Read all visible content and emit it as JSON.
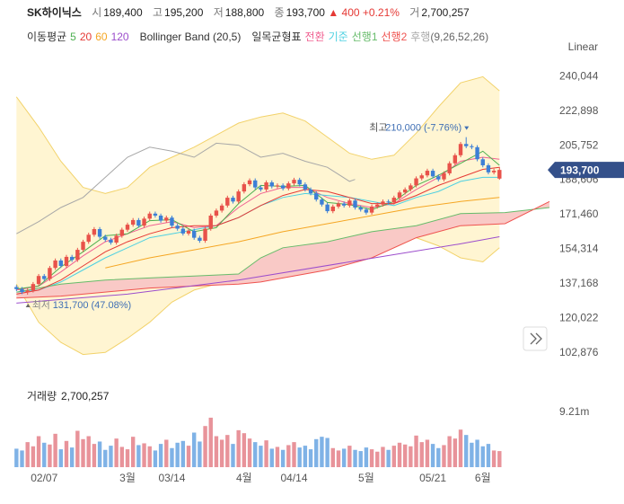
{
  "header": {
    "name": "SK하이닉스",
    "fields": [
      {
        "label": "시",
        "value": "189,400"
      },
      {
        "label": "고",
        "value": "195,200"
      },
      {
        "label": "저",
        "value": "188,800"
      },
      {
        "label": "종",
        "value": "193,700"
      }
    ],
    "change": "▲ 400",
    "change_pct": "+0.21%",
    "volume_label": "거",
    "volume": "2,700,257"
  },
  "chart_data": [
    {
      "type": "candlestick",
      "scale": "Linear",
      "xlim": [
        -0.7,
        97.3
      ],
      "ylim": [
        96000,
        246000
      ],
      "xticks": [
        {
          "value": 5,
          "label": "02/07"
        },
        {
          "value": 20,
          "label": "3월"
        },
        {
          "value": 28,
          "label": "03/14"
        },
        {
          "value": 41,
          "label": "4월"
        },
        {
          "value": 50,
          "label": "04/14"
        },
        {
          "value": 63,
          "label": "5월"
        },
        {
          "value": 75,
          "label": "05/21"
        },
        {
          "value": 84,
          "label": "6월"
        }
      ],
      "yticks": [
        {
          "value": 240044,
          "label": "240,044"
        },
        {
          "value": 222898,
          "label": "222,898"
        },
        {
          "value": 205752,
          "label": "205,752"
        },
        {
          "value": 188606,
          "label": "188,606"
        },
        {
          "value": 171460,
          "label": "171,460"
        },
        {
          "value": 154314,
          "label": "154,314"
        },
        {
          "value": 137168,
          "label": "137,168"
        },
        {
          "value": 120022,
          "label": "120,022"
        },
        {
          "value": 102876,
          "label": "102,876"
        }
      ],
      "up_color": "#e8524a",
      "down_color": "#3d7fd6",
      "last_price": {
        "value": 193700,
        "label": "193,700"
      },
      "high_note": {
        "label": "최고",
        "text": "210,000 (-7.76%)"
      },
      "low_note": {
        "label": "최저",
        "text": "131,700 (47.08%)"
      },
      "open": [
        135500,
        134500,
        133000,
        133800,
        137000,
        141000,
        139500,
        145000,
        148700,
        146000,
        150500,
        149000,
        154000,
        158000,
        161500,
        164300,
        160500,
        159000,
        157600,
        161000,
        164000,
        166500,
        168800,
        166000,
        169500,
        172000,
        171000,
        168500,
        170000,
        166000,
        164500,
        162100,
        163500,
        160000,
        158500,
        164500,
        171000,
        173500,
        176000,
        179900,
        178000,
        183000,
        186600,
        188500,
        185000,
        184000,
        187500,
        185500,
        186000,
        184500,
        187000,
        188800,
        186500,
        184000,
        182100,
        179000,
        176500,
        173200,
        175500,
        177000,
        176000,
        178500,
        175000,
        174000,
        172500,
        175500,
        176500,
        178000,
        177500,
        179900,
        182500,
        184000,
        186000,
        189500,
        191000,
        193300,
        190500,
        189000,
        192000,
        197000,
        201000,
        206600,
        205500,
        205000,
        199000,
        196000,
        192500,
        189400
      ],
      "high": [
        136500,
        135500,
        134800,
        138000,
        142000,
        142000,
        146000,
        149700,
        149700,
        151500,
        151500,
        155000,
        159000,
        162500,
        165300,
        165300,
        161500,
        160000,
        162000,
        165000,
        167500,
        169800,
        169800,
        170500,
        173000,
        173000,
        172000,
        171000,
        171000,
        167000,
        165500,
        164500,
        164500,
        161000,
        165500,
        172000,
        174500,
        177000,
        180900,
        180900,
        184000,
        187600,
        189500,
        189500,
        186000,
        188500,
        188500,
        187000,
        187000,
        188000,
        189800,
        189800,
        187500,
        185000,
        183100,
        180000,
        177500,
        176500,
        178000,
        178000,
        179500,
        179500,
        176000,
        175000,
        176500,
        177500,
        179000,
        179000,
        180900,
        183500,
        185000,
        187000,
        190500,
        192000,
        194300,
        194300,
        191500,
        193000,
        198000,
        202000,
        207600,
        210000,
        206500,
        206000,
        200000,
        197000,
        194300,
        195200
      ],
      "low": [
        133500,
        132000,
        131700,
        132800,
        136000,
        138500,
        138500,
        144000,
        145000,
        145000,
        148000,
        148000,
        153000,
        157000,
        160500,
        159500,
        158000,
        156600,
        156600,
        160000,
        163000,
        165500,
        165000,
        165000,
        168500,
        170000,
        167500,
        167500,
        165000,
        163500,
        161100,
        161100,
        159000,
        157500,
        157500,
        163500,
        170000,
        172500,
        175000,
        177000,
        177000,
        182000,
        185600,
        184000,
        183000,
        183000,
        184500,
        184500,
        183500,
        183500,
        186000,
        185500,
        183000,
        181100,
        178000,
        175500,
        172200,
        172200,
        174500,
        175000,
        175000,
        174000,
        173000,
        171500,
        171500,
        174500,
        175500,
        176500,
        176500,
        178900,
        181500,
        183000,
        185000,
        188500,
        190000,
        189500,
        188000,
        188000,
        191000,
        196000,
        200000,
        204500,
        204000,
        198000,
        195000,
        191500,
        191500,
        188800
      ],
      "close": [
        134500,
        133000,
        133800,
        137000,
        141000,
        139500,
        145000,
        148700,
        146000,
        150500,
        149000,
        154000,
        158000,
        161500,
        164300,
        160500,
        159000,
        157600,
        161000,
        164000,
        166500,
        168800,
        166000,
        169500,
        172000,
        171000,
        168500,
        170000,
        166000,
        164500,
        162100,
        163500,
        160000,
        158500,
        164500,
        171000,
        173500,
        176000,
        179900,
        178000,
        183000,
        186600,
        188500,
        185000,
        184000,
        187500,
        185500,
        186000,
        184500,
        187000,
        188800,
        186500,
        184000,
        182100,
        179000,
        176500,
        173200,
        175500,
        177000,
        176000,
        178500,
        175000,
        174000,
        172500,
        175500,
        176500,
        178000,
        177500,
        179900,
        182500,
        184000,
        186000,
        189500,
        191000,
        193300,
        190500,
        189000,
        192000,
        197000,
        201000,
        206600,
        205500,
        205000,
        199000,
        196000,
        192500,
        193300,
        193700
      ],
      "moving_averages": {
        "label": "이동평균",
        "series": [
          {
            "name": "5",
            "color": "#4caf50",
            "x": [
              0,
              4,
              8,
              12,
              16,
              20,
              24,
              28,
              32,
              36,
              40,
              44,
              48,
              52,
              56,
              60,
              64,
              68,
              72,
              76,
              80,
              84,
              87
            ],
            "values": [
              134500,
              136000,
              145500,
              153000,
              161000,
              162000,
              168500,
              169000,
              163000,
              165000,
              177000,
              186000,
              185500,
              186000,
              177500,
              176500,
              174000,
              178000,
              186000,
              191000,
              197000,
              203000,
              196000
            ]
          },
          {
            "name": "20",
            "color": "#e53935",
            "x": [
              0,
              4,
              8,
              12,
              16,
              20,
              24,
              28,
              32,
              36,
              40,
              44,
              48,
              52,
              56,
              60,
              64,
              68,
              72,
              76,
              80,
              84,
              87
            ],
            "values": [
              132000,
              134000,
              139000,
              146000,
              153000,
              158000,
              162000,
              165000,
              166000,
              166000,
              170000,
              176000,
              181000,
              184000,
              183000,
              180000,
              177000,
              177000,
              181000,
              186000,
              190000,
              194000,
              195000
            ]
          },
          {
            "name": "60",
            "color": "#f5a623",
            "x": [
              16,
              24,
              32,
              40,
              48,
              56,
              64,
              72,
              80,
              87
            ],
            "values": [
              145000,
              150000,
              154000,
              158000,
              163000,
              167000,
              171000,
              175000,
              178000,
              180000
            ]
          },
          {
            "name": "120",
            "color": "#9c4dcc",
            "x": [
              0,
              20,
              40,
              60,
              80,
              87
            ],
            "values": [
              127500,
              132000,
              139000,
              148000,
              157000,
              160500
            ]
          }
        ]
      },
      "bollinger": {
        "name": "Bollinger Band (20,5)",
        "color": "#f2d26a",
        "fill": "#fff5d2",
        "x": [
          0,
          4,
          8,
          12,
          16,
          20,
          24,
          28,
          32,
          36,
          40,
          44,
          48,
          52,
          56,
          60,
          64,
          68,
          72,
          76,
          80,
          84,
          87
        ],
        "upper": [
          230000,
          215000,
          198000,
          185000,
          182000,
          185000,
          195000,
          200000,
          205000,
          211000,
          217000,
          220000,
          222000,
          218000,
          210000,
          202000,
          199000,
          201000,
          212000,
          225000,
          237000,
          240000,
          233000
        ],
        "lower": [
          137000,
          118000,
          108000,
          102000,
          103000,
          110000,
          118000,
          128000,
          134000,
          137000,
          140000,
          143000,
          147000,
          150000,
          152000,
          152000,
          152000,
          155000,
          160000,
          156000,
          150000,
          148000,
          155000
        ]
      },
      "ichimoku": {
        "label": "일목균형표",
        "params": "(9,26,52,26)",
        "cloud_fill": "#f9c9c6",
        "series": [
          {
            "name": "전환",
            "color": "#f06292",
            "x": [
              0,
              4,
              8,
              12,
              16,
              20,
              24,
              28,
              32,
              36,
              40,
              44,
              48,
              52,
              56,
              60,
              64,
              68,
              72,
              76,
              80,
              84,
              87
            ],
            "values": [
              134000,
              136000,
              143000,
              151000,
              158000,
              162000,
              166000,
              168000,
              165000,
              166000,
              175000,
              182000,
              185000,
              185000,
              180000,
              177000,
              175000,
              177000,
              184000,
              190000,
              198000,
              200000,
              199000
            ]
          },
          {
            "name": "기준",
            "color": "#4dd0e1",
            "x": [
              0,
              4,
              8,
              12,
              16,
              20,
              24,
              28,
              32,
              36,
              40,
              44,
              48,
              52,
              56,
              60,
              64,
              68,
              72,
              76,
              80,
              84,
              87
            ],
            "values": [
              133000,
              134000,
              138000,
              144000,
              150000,
              155000,
              160000,
              162000,
              164000,
              166000,
              170000,
              176000,
              180000,
              182000,
              181000,
              180000,
              178000,
              176000,
              180000,
              183000,
              188000,
              190000,
              190000
            ]
          },
          {
            "name": "선행1",
            "color": "#66bb6a",
            "x": [
              0,
              8,
              16,
              24,
              32,
              40,
              44,
              48,
              56,
              64,
              72,
              80,
              88,
              96
            ],
            "values": [
              133000,
              137000,
              139000,
              140000,
              141000,
              142000,
              150000,
              155000,
              158000,
              163000,
              166000,
              172000,
              172500,
              175000
            ]
          },
          {
            "name": "선행2",
            "color": "#ef5350",
            "x": [
              0,
              8,
              16,
              24,
              32,
              40,
              44,
              48,
              56,
              64,
              72,
              80,
              88,
              96
            ],
            "values": [
              130000,
              131000,
              133000,
              135000,
              136000,
              137000,
              138000,
              140000,
              144000,
              150000,
              160000,
              166000,
              167000,
              178000
            ]
          },
          {
            "name": "후행",
            "color": "#a8a8a8",
            "x": [
              0,
              4,
              8,
              12,
              16,
              20,
              24,
              28,
              32,
              36,
              40,
              44,
              48,
              52,
              56,
              60,
              61
            ],
            "values": [
              162000,
              168000,
              175000,
              180000,
              190000,
              200000,
              205000,
              203000,
              200000,
              207000,
              206000,
              200000,
              202000,
              198000,
              195000,
              188000,
              189000
            ]
          }
        ]
      }
    },
    {
      "type": "bar",
      "title": "거래량",
      "value_label": "2,700,257",
      "ylim": [
        0,
        11000000
      ],
      "yticks": [
        {
          "value": 9210000,
          "label": "9.21m"
        }
      ],
      "values": [
        3100000,
        2800000,
        4200000,
        3500000,
        5200000,
        4100000,
        3800000,
        5600000,
        3000000,
        4400000,
        3300000,
        6100000,
        4700000,
        5200000,
        3900000,
        4300000,
        2900000,
        3600000,
        4800000,
        3400000,
        3000000,
        5100000,
        3700000,
        4000000,
        3500000,
        2800000,
        3900000,
        4600000,
        3200000,
        4100000,
        4400000,
        3600000,
        5800000,
        4300000,
        6900000,
        8300000,
        5200000,
        4600000,
        5400000,
        3900000,
        6200000,
        5700000,
        4800000,
        4200000,
        3600000,
        4500000,
        3100000,
        3400000,
        2900000,
        3700000,
        4200000,
        3300000,
        3600000,
        3000000,
        4700000,
        5100000,
        4900000,
        3200000,
        2800000,
        3100000,
        3600000,
        2900000,
        2700000,
        3300000,
        3000000,
        2600000,
        3400000,
        2900000,
        3600000,
        4100000,
        3800000,
        3500000,
        5300000,
        4200000,
        4600000,
        3900000,
        3200000,
        3700000,
        5200000,
        4800000,
        6300000,
        5400000,
        4100000,
        4600000,
        3500000,
        3900000,
        2800000,
        2700257
      ]
    }
  ]
}
